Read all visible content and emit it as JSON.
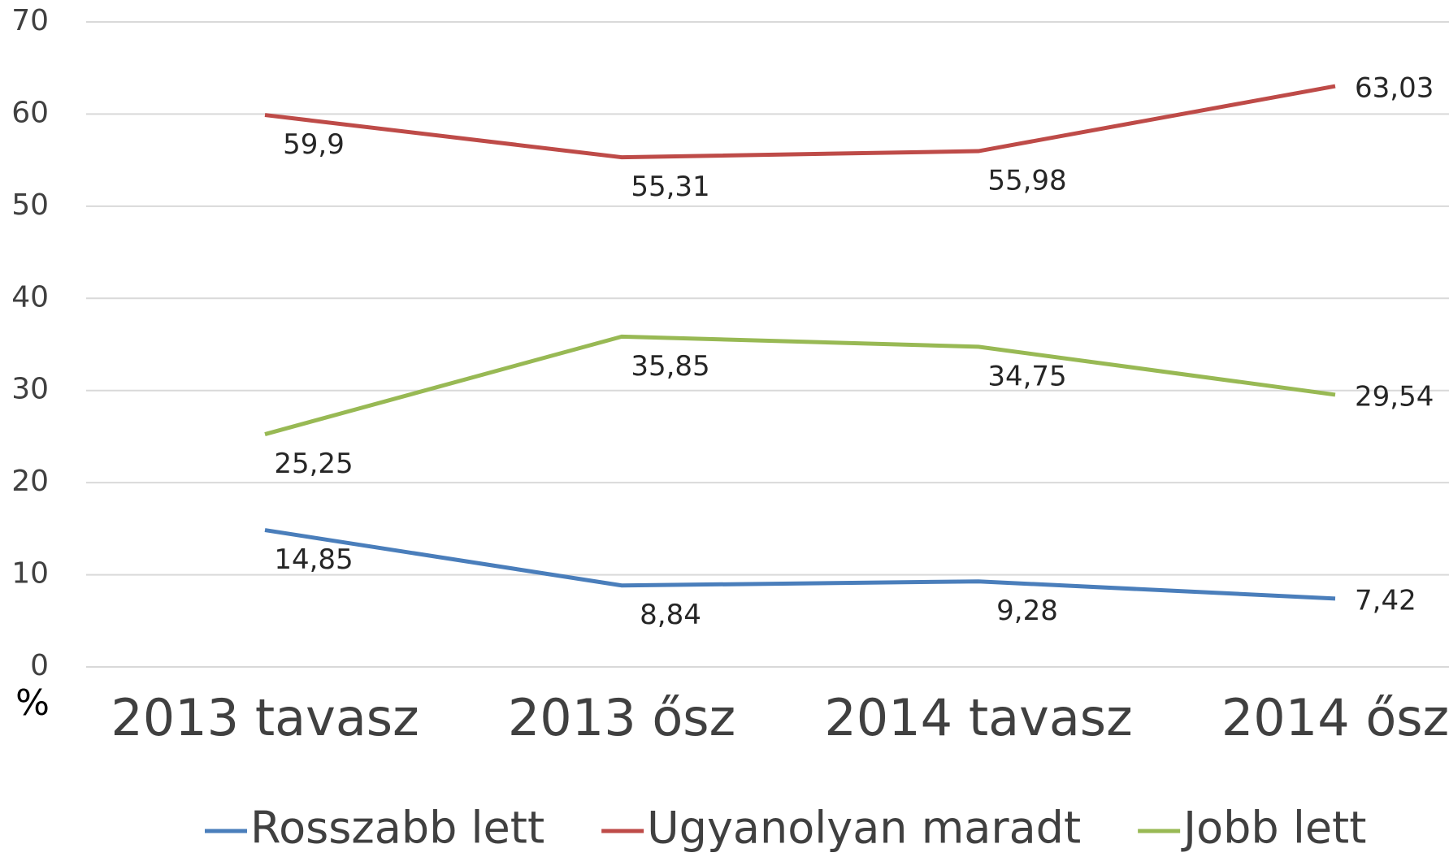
{
  "chart_data": {
    "type": "line",
    "y_label": "%",
    "categories": [
      "2013 tavasz",
      "2013 ősz",
      "2014 tavasz",
      "2014 ősz"
    ],
    "series": [
      {
        "name": "Rosszabb lett",
        "color": "#4a7ebb",
        "values": [
          14.85,
          8.84,
          9.28,
          7.42
        ],
        "value_labels": [
          "14,85",
          "8,84",
          "9,28",
          "7,42"
        ]
      },
      {
        "name": "Ugyanolyan maradt",
        "color": "#be4b48",
        "values": [
          59.9,
          55.31,
          55.98,
          63.03
        ],
        "value_labels": [
          "59,9",
          "55,31",
          "55,98",
          "63,03"
        ]
      },
      {
        "name": "Jobb lett",
        "color": "#98b954",
        "values": [
          25.25,
          35.85,
          34.75,
          29.54
        ],
        "value_labels": [
          "25,25",
          "35,85",
          "34,75",
          "29,54"
        ]
      }
    ],
    "ylim": [
      0,
      70
    ],
    "yticks": [
      0,
      10,
      20,
      30,
      40,
      50,
      60,
      70
    ],
    "grid": true,
    "legend": "bottom"
  }
}
